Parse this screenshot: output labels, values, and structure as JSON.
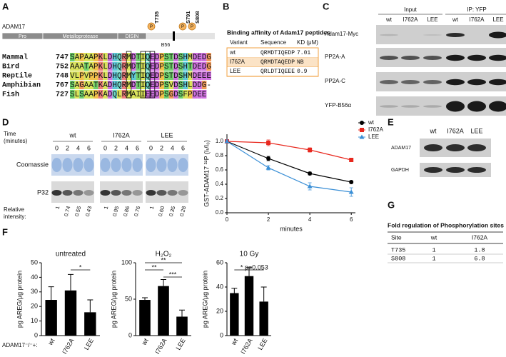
{
  "panels": {
    "A": {
      "label": "A",
      "protein": "ADAM17",
      "domains": [
        "Pro",
        "Metalloprotease",
        "DISIN"
      ],
      "b56": "B56",
      "sites": [
        {
          "p": "P",
          "name": "T735"
        },
        {
          "p": "P",
          "name": "S791"
        },
        {
          "p": "P",
          "name": "S808"
        }
      ],
      "alignment": [
        {
          "species": "Mammal",
          "start": 747,
          "sequence": "SAPAAPKLDHQRMDTIQEDPSTDSHMDEDG"
        },
        {
          "species": "Bird",
          "start": 752,
          "sequence": "AAATAPKLDHQRMDTIQEDPSTDSHTDEDG"
        },
        {
          "species": "Reptile",
          "start": 748,
          "sequence": "VLPVPPKLDHQRMYTIQEDPSTDSHMDEEE"
        },
        {
          "species": "Amphibian",
          "start": 767,
          "sequence": "SAGAATKADHQRMDTIQEDPSVDSHLDDG-"
        },
        {
          "species": "Fish",
          "start": 727,
          "sequence": "SLSAAPKADQLRMAIIEEDPSGDSFPDEE"
        }
      ]
    },
    "B": {
      "label": "B",
      "title": "Binding affinity of Adam17 peptides",
      "header": [
        "Variant",
        "Sequence",
        "KD (μM)"
      ],
      "rows": [
        [
          "wt",
          "QRMDTIQEDP",
          7.01
        ],
        [
          "I762A",
          "QRMDTAQEDP",
          "NB"
        ],
        [
          "LEE",
          "QRLDTIQEEE",
          0.9
        ]
      ]
    },
    "C": {
      "label": "C",
      "groups": [
        "Input",
        "IP: YFP"
      ],
      "lanes": [
        "wt",
        "I762A",
        "LEE",
        "wt",
        "I762A",
        "LEE"
      ],
      "rows": [
        "Adam17-Myc",
        "PP2A-A",
        "PP2A-C",
        "YFP-B56α"
      ]
    },
    "D": {
      "label": "D",
      "time_label": [
        "Time",
        "(minutes)"
      ],
      "rows": [
        "Coomassie",
        "P32"
      ],
      "intensity_label": [
        "Relative",
        "intensity:"
      ],
      "groups": [
        {
          "name": "wt",
          "times": [
            0,
            2,
            4,
            6
          ],
          "intensity": [
            1,
            0.74,
            0.55,
            0.43
          ]
        },
        {
          "name": "I762A",
          "times": [
            0,
            2,
            4,
            6
          ],
          "intensity": [
            1,
            0.95,
            0.86,
            0.76
          ]
        },
        {
          "name": "LEE",
          "times": [
            0,
            2,
            4,
            6
          ],
          "intensity": [
            1,
            "0.60",
            0.35,
            0.28
          ]
        }
      ]
    },
    "E": {
      "label": "E",
      "lanes": [
        "wt",
        "I762A",
        "LEE"
      ],
      "rows": [
        "ADAM17",
        "GAPDH"
      ]
    },
    "F": {
      "label": "F",
      "genotype": "ADAM17⁻/⁻+:"
    },
    "G": {
      "label": "G",
      "title": "Fold regulation of Phosphorylation sites",
      "header": [
        "Site",
        "wt",
        "I762A"
      ],
      "rows": [
        [
          "T735",
          1,
          1.8
        ],
        [
          "S808",
          1,
          6.8
        ]
      ]
    }
  },
  "chart_data": [
    {
      "type": "line",
      "x": [
        0,
        2,
        4,
        6
      ],
      "xlim": [
        0,
        6.2
      ],
      "xticks": [
        0,
        2,
        4,
        6
      ],
      "xlabel": "minutes",
      "ylim": [
        0,
        1.1
      ],
      "yticks": [
        {
          "value": 0,
          "label": "0.0"
        },
        0.2,
        0.4,
        0.6,
        0.8,
        {
          "value": 1,
          "label": "1.0"
        }
      ],
      "ylabel": "GST-ADAM17 ³²P (Iₜ/I₀)",
      "legend": "upper right",
      "series": [
        {
          "name": "wt",
          "color": "#000000",
          "marker": "circle",
          "values": [
            1,
            0.76,
            0.55,
            0.43
          ],
          "errors": [
            0.02,
            0.03,
            0.02,
            0.02
          ]
        },
        {
          "name": "I762A",
          "color": "#e8281e",
          "marker": "square",
          "values": [
            1,
            0.98,
            0.88,
            0.74
          ],
          "errors": [
            0.02,
            0.04,
            0.03,
            0.02
          ]
        },
        {
          "name": "LEE",
          "color": "#3a8fd6",
          "marker": "triangle",
          "values": [
            1,
            0.63,
            0.37,
            0.29
          ],
          "errors": [
            0.02,
            0.03,
            0.05,
            0.06
          ]
        }
      ]
    },
    {
      "type": "bar",
      "title": "untreated",
      "ylabel": "pg AREG/µg protein",
      "categories": [
        "wt",
        "I762A",
        "LEE"
      ],
      "values": [
        24.5,
        31,
        16
      ],
      "errors": [
        9,
        11,
        8.5
      ],
      "color": "#000000",
      "ylim": [
        0,
        50
      ],
      "yticks": [
        0,
        10,
        20,
        30,
        40,
        50
      ],
      "annotations": [
        "*"
      ]
    },
    {
      "type": "bar",
      "title": "H₂O₂",
      "ylabel": "pg AREG/µg protein",
      "categories": [
        "wt",
        "I762A",
        "LEE"
      ],
      "values": [
        49,
        68,
        26
      ],
      "errors": [
        3,
        9,
        9
      ],
      "color": "#000000",
      "ylim": [
        0,
        100
      ],
      "yticks": [
        0,
        50,
        100
      ],
      "annotations": [
        "**",
        "**",
        "***"
      ]
    },
    {
      "type": "bar",
      "title": "10 Gy",
      "ylabel": "pg AREG/µg protein",
      "categories": [
        "wt",
        "I762A",
        "LEE"
      ],
      "values": [
        35,
        49,
        28
      ],
      "errors": [
        4,
        7,
        12
      ],
      "color": "#000000",
      "ylim": [
        0,
        60
      ],
      "yticks": [
        0,
        20,
        40,
        60
      ],
      "annotations": [
        "*",
        "p=0.053"
      ]
    }
  ]
}
